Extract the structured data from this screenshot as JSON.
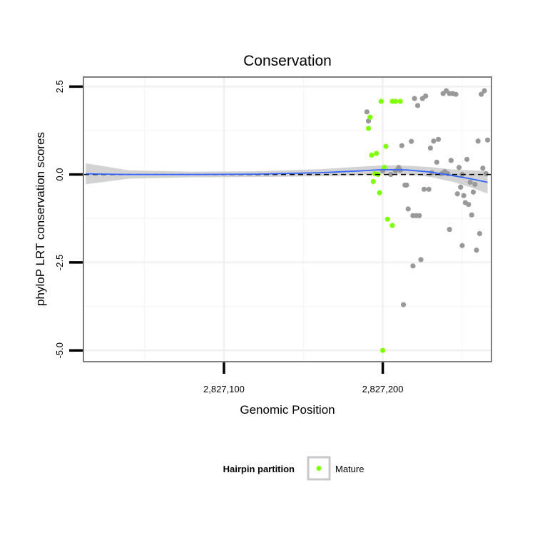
{
  "chart_data": {
    "type": "scatter",
    "title": "Conservation",
    "xlabel": "Genomic Position",
    "ylabel": "phyloP LRT conservation scores",
    "xlim": [
      2827012,
      2827268
    ],
    "ylim": [
      -5.3,
      2.75
    ],
    "x_ticks": [
      2827100,
      2827200
    ],
    "x_tick_labels": [
      "2,827,100",
      "2,827,200"
    ],
    "y_ticks": [
      2.5,
      0,
      -2.5,
      -5
    ],
    "y_tick_labels": [
      "2.5",
      "0.0",
      "-2.5",
      "-5.0"
    ],
    "grid": true,
    "reference_line": {
      "y": 0,
      "style": "dashed",
      "color": "#000000"
    },
    "legend": {
      "title": "Hairpin partition",
      "position": "bottom",
      "entries": [
        {
          "label": "Mature",
          "color": "#7FFF00"
        }
      ]
    },
    "colors": {
      "other": "#999999",
      "mature": "#7FFF00",
      "smooth": "#3366FF",
      "ribbon": "#C8C8C8"
    },
    "smooth_line": {
      "x": [
        2827013,
        2827040,
        2827080,
        2827120,
        2827160,
        2827185,
        2827200,
        2827215,
        2827230,
        2827245,
        2827255,
        2827266
      ],
      "y": [
        0.02,
        0.0,
        0.0,
        0.01,
        0.05,
        0.1,
        0.14,
        0.13,
        0.07,
        -0.04,
        -0.12,
        -0.22
      ],
      "band_half_width": [
        0.3,
        0.12,
        0.08,
        0.08,
        0.1,
        0.12,
        0.12,
        0.12,
        0.14,
        0.18,
        0.24,
        0.32
      ]
    },
    "series": [
      {
        "name": "Mature",
        "x": [
          2827199,
          2827206,
          2827208,
          2827211,
          2827192,
          2827191,
          2827202,
          2827193,
          2827196,
          2827201,
          2827195,
          2827198,
          2827194,
          2827197,
          2827203,
          2827206,
          2827200
        ],
        "y": [
          2.08,
          2.08,
          2.08,
          2.08,
          1.63,
          1.31,
          0.8,
          0.55,
          0.6,
          0.2,
          0.02,
          -0.52,
          -0.2,
          0.0,
          -1.27,
          -1.45,
          -5.0
        ]
      },
      {
        "name": "",
        "x": [
          2827190,
          2827191,
          2827200,
          2827205,
          2827208,
          2827210,
          2827212,
          2827215,
          2827218,
          2827220,
          2827222,
          2827225,
          2827227,
          2827230,
          2827232,
          2827235,
          2827238,
          2827240,
          2827242,
          2827244,
          2827246,
          2827248,
          2827250,
          2827252,
          2827254,
          2827256,
          2827258,
          2827260,
          2827262,
          2827264,
          2827266,
          2827211,
          2827214,
          2827216,
          2827219,
          2827221,
          2827223,
          2827226,
          2827229,
          2827231,
          2827234,
          2827237,
          2827239,
          2827241,
          2827243,
          2827247,
          2827249,
          2827251,
          2827253,
          2827255,
          2827257,
          2827259,
          2827263,
          2827265,
          2827250,
          2827261,
          2827242,
          2827224,
          2827219,
          2827213
        ],
        "y": [
          1.78,
          1.52,
          0.1,
          0.0,
          0.1,
          0.2,
          0.82,
          -0.3,
          0.94,
          2.16,
          1.96,
          2.16,
          2.23,
          0.75,
          0.95,
          1.0,
          2.3,
          2.38,
          2.3,
          2.3,
          2.28,
          0.2,
          0.0,
          -0.8,
          -0.85,
          -1.15,
          -0.28,
          0.95,
          2.28,
          2.38,
          0.98,
          0.12,
          -0.3,
          -0.98,
          -1.17,
          -1.17,
          -1.17,
          -0.42,
          -0.42,
          0.05,
          0.35,
          0.02,
          0.08,
          0.02,
          0.4,
          -0.55,
          -0.36,
          -0.6,
          0.43,
          -0.22,
          -0.5,
          -2.15,
          0.18,
          0.02,
          -2.02,
          -1.68,
          -1.56,
          -2.42,
          -2.6,
          -3.7
        ]
      }
    ]
  }
}
